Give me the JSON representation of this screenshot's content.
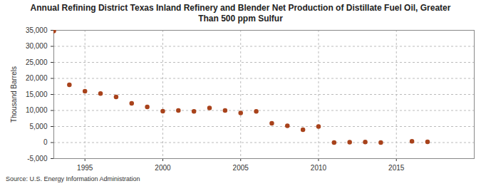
{
  "chart_data": {
    "type": "scatter",
    "title": "Annual Refining District Texas Inland Refinery and Blender Net Production of Distillate Fuel Oil, Greater Than 500 ppm Sulfur",
    "y_label": "Thousand Barrels",
    "caption": "Source: U.S. Energy Information Administration",
    "x": [
      1993,
      1994,
      1995,
      1996,
      1997,
      1998,
      1999,
      2000,
      2001,
      2002,
      2003,
      2004,
      2005,
      2006,
      2007,
      2008,
      2009,
      2010,
      2011,
      2012,
      2013,
      2014,
      2015,
      2016,
      2017
    ],
    "values": [
      34800,
      18000,
      16000,
      15300,
      14200,
      12200,
      11100,
      9800,
      10000,
      9700,
      10800,
      10000,
      9200,
      9700,
      6000,
      5200,
      4000,
      5000,
      0,
      100,
      150,
      0,
      null,
      400,
      200
    ],
    "color": "#a8431c",
    "marker": "circle",
    "xlim": [
      1993,
      2020
    ],
    "xticks": [
      1995,
      2000,
      2005,
      2010,
      2015
    ],
    "ylim": [
      -5000,
      35000
    ],
    "yticks": [
      {
        "value": -5000,
        "label": "-5,000"
      },
      0,
      {
        "value": 5000,
        "label": "5,000"
      },
      {
        "value": 10000,
        "label": "10,000"
      },
      {
        "value": 15000,
        "label": "15,000"
      },
      {
        "value": 20000,
        "label": "20,000"
      },
      {
        "value": 25000,
        "label": "25,000"
      },
      {
        "value": 30000,
        "label": "30,000"
      },
      {
        "value": 35000,
        "label": "35,000"
      }
    ],
    "grid": true
  }
}
